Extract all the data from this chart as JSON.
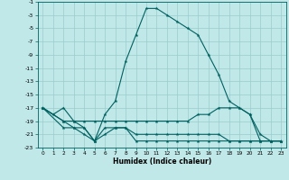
{
  "xlabel": "Humidex (Indice chaleur)",
  "bg_color": "#c0e8e8",
  "grid_color": "#98cccc",
  "line_color": "#006060",
  "xlim": [
    -0.5,
    23.5
  ],
  "ylim": [
    -23,
    -1
  ],
  "xticks": [
    0,
    1,
    2,
    3,
    4,
    5,
    6,
    7,
    8,
    9,
    10,
    11,
    12,
    13,
    14,
    15,
    16,
    17,
    18,
    19,
    20,
    21,
    22,
    23
  ],
  "yticks": [
    -1,
    -3,
    -5,
    -7,
    -9,
    -11,
    -13,
    -15,
    -17,
    -19,
    -21,
    -23
  ],
  "series1_x": [
    0,
    1,
    2,
    3,
    4,
    5,
    6,
    7,
    8,
    9,
    10,
    11,
    12,
    13,
    14,
    15,
    16,
    17,
    18,
    19,
    20,
    21,
    22,
    23
  ],
  "series1_y": [
    -17,
    -18,
    -17,
    -19,
    -20,
    -22,
    -18,
    -16,
    -10,
    -6,
    -2,
    -2,
    -3,
    -4,
    -5,
    -6,
    -9,
    -12,
    -16,
    -17,
    -18,
    -21,
    -22,
    -22
  ],
  "series2_x": [
    0,
    2,
    3,
    4,
    5,
    6,
    7,
    8,
    9,
    10,
    11,
    12,
    13,
    14,
    15,
    16,
    17,
    18,
    19,
    20,
    21,
    22,
    23
  ],
  "series2_y": [
    -17,
    -19,
    -19,
    -19,
    -19,
    -19,
    -19,
    -19,
    -19,
    -19,
    -19,
    -19,
    -19,
    -19,
    -18,
    -18,
    -17,
    -17,
    -17,
    -18,
    -22,
    -22,
    -22
  ],
  "series3_x": [
    0,
    2,
    3,
    4,
    5,
    6,
    7,
    8,
    9,
    10,
    11,
    12,
    13,
    14,
    15,
    16,
    17,
    18,
    19,
    20,
    21,
    22,
    23
  ],
  "series3_y": [
    -17,
    -19,
    -20,
    -21,
    -22,
    -20,
    -20,
    -20,
    -21,
    -21,
    -21,
    -21,
    -21,
    -21,
    -21,
    -21,
    -21,
    -22,
    -22,
    -22,
    -22,
    -22,
    -22
  ],
  "series4_x": [
    0,
    2,
    3,
    4,
    5,
    6,
    7,
    8,
    9,
    10,
    11,
    12,
    13,
    14,
    15,
    16,
    17,
    18,
    19,
    20,
    21,
    22,
    23
  ],
  "series4_y": [
    -17,
    -20,
    -20,
    -20,
    -22,
    -21,
    -20,
    -20,
    -22,
    -22,
    -22,
    -22,
    -22,
    -22,
    -22,
    -22,
    -22,
    -22,
    -22,
    -22,
    -22,
    -22,
    -22
  ]
}
